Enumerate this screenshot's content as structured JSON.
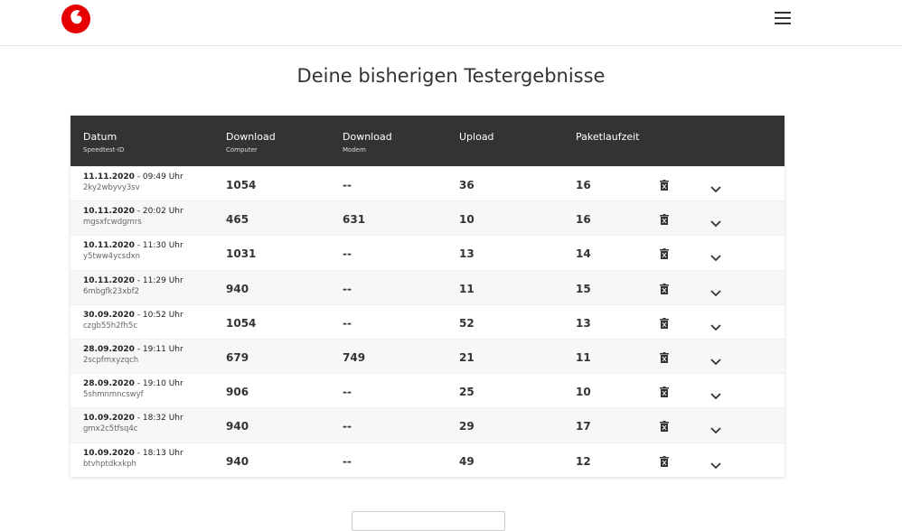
{
  "title": "Deine bisherigen Testergebnisse",
  "table": {
    "headers": [
      {
        "label": "Datum",
        "sublabel": "Speedtest-ID"
      },
      {
        "label": "Download",
        "sublabel": "Computer"
      },
      {
        "label": "Download",
        "sublabel": "Modem"
      },
      {
        "label": "Upload"
      },
      {
        "label": "Paketlaufzeit"
      }
    ],
    "rows": [
      {
        "date": "11.11.2020",
        "time": "- 09:49 Uhr",
        "id": "2ky2wbyvy3sv",
        "download_computer": "1054",
        "download_modem": "--",
        "upload": "36",
        "latency": "16"
      },
      {
        "date": "10.11.2020",
        "time": "- 20:02 Uhr",
        "id": "mgsxfcwdgmrs",
        "download_computer": "465",
        "download_modem": "631",
        "upload": "10",
        "latency": "16"
      },
      {
        "date": "10.11.2020",
        "time": "- 11:30 Uhr",
        "id": "y5tww4ycsdxn",
        "download_computer": "1031",
        "download_modem": "--",
        "upload": "13",
        "latency": "14"
      },
      {
        "date": "10.11.2020",
        "time": "- 11:29 Uhr",
        "id": "6mbgfk23xbf2",
        "download_computer": "940",
        "download_modem": "--",
        "upload": "11",
        "latency": "15"
      },
      {
        "date": "30.09.2020",
        "time": "- 10:52 Uhr",
        "id": "czgb55h2fh5c",
        "download_computer": "1054",
        "download_modem": "--",
        "upload": "52",
        "latency": "13"
      },
      {
        "date": "28.09.2020",
        "time": "- 19:11 Uhr",
        "id": "2scpfmxyzqch",
        "download_computer": "679",
        "download_modem": "749",
        "upload": "21",
        "latency": "11"
      },
      {
        "date": "28.09.2020",
        "time": "- 19:10 Uhr",
        "id": "5shmnmncswyf",
        "download_computer": "906",
        "download_modem": "--",
        "upload": "25",
        "latency": "10"
      },
      {
        "date": "10.09.2020",
        "time": "- 18:32 Uhr",
        "id": "gmx2c5tfsq4c",
        "download_computer": "940",
        "download_modem": "--",
        "upload": "29",
        "latency": "17"
      },
      {
        "date": "10.09.2020",
        "time": "- 18:13 Uhr",
        "id": "btvhptdkxkph",
        "download_computer": "940",
        "download_modem": "--",
        "upload": "49",
        "latency": "12"
      }
    ]
  }
}
